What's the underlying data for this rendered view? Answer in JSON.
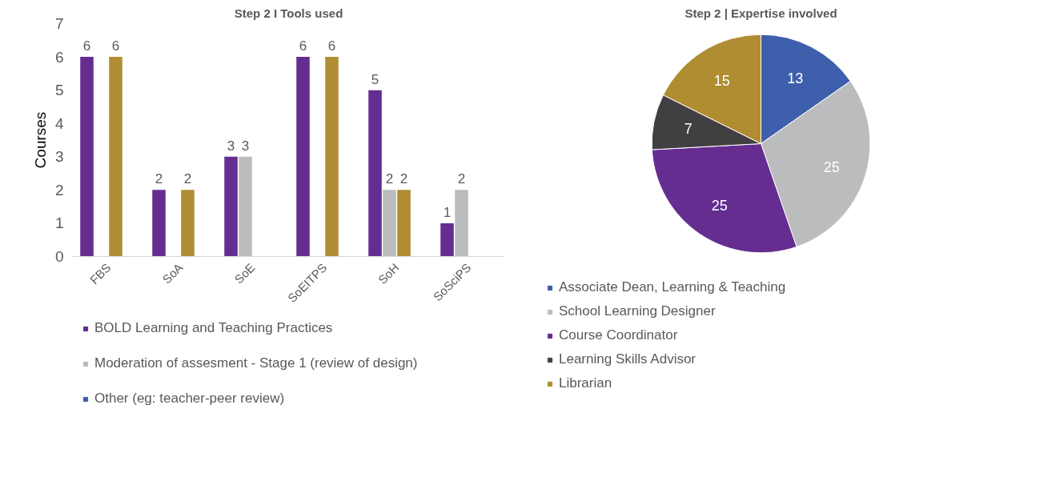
{
  "chart_data": [
    {
      "type": "bar",
      "title": "Step 2 I Tools used",
      "ylabel": "Courses",
      "categories": [
        "FBS",
        "SoA",
        "SoE",
        "SoEITPS",
        "SoH",
        "SoSciPS"
      ],
      "series": [
        {
          "name": "BOLD Learning and Teaching Practices",
          "color": "#662d91",
          "values": [
            6,
            2,
            3,
            6,
            5,
            1
          ]
        },
        {
          "name": "Moderation of assesment - Stage 1 (review of design)",
          "color": "#bbbcbe",
          "values": [
            null,
            null,
            3,
            null,
            2,
            2
          ]
        },
        {
          "color": "#b08d33",
          "values": [
            6,
            2,
            null,
            6,
            2,
            null
          ]
        },
        {
          "name": "Other (eg: teacher-peer review)",
          "color": "#3e5fab",
          "values": [
            null,
            null,
            null,
            null,
            null,
            null
          ]
        }
      ],
      "ylim": [
        0,
        7
      ],
      "yticks": [
        0,
        1,
        2,
        3,
        4,
        5,
        6,
        7
      ],
      "grid": false,
      "data_labels": true,
      "legend": "bottom"
    },
    {
      "type": "pie",
      "title": "Step 2 | Expertise involved",
      "categories": [
        "Associate Dean, Learning & Teaching",
        "School Learning Designer",
        "Course Coordinator",
        "Learning Skills Advisor",
        "Librarian"
      ],
      "values": [
        13,
        25,
        25,
        7,
        15
      ],
      "colors": [
        "#3e5fab",
        "#bbbcbe",
        "#662d91",
        "#404042",
        "#b08d33"
      ],
      "data_labels": true,
      "legend": "bottom"
    }
  ]
}
